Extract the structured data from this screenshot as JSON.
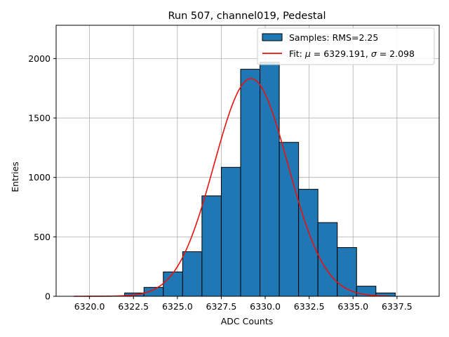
{
  "chart_data": {
    "type": "bar",
    "title": "Run 507, channel019, Pedestal",
    "xlabel": "ADC Counts",
    "ylabel": "Entries",
    "xlim": [
      6318.1,
      6339.9
    ],
    "ylim": [
      0,
      2280
    ],
    "xticks": [
      6320.0,
      6322.5,
      6325.0,
      6327.5,
      6330.0,
      6332.5,
      6335.0,
      6337.5
    ],
    "xtick_labels": [
      "6320.0",
      "6322.5",
      "6325.0",
      "6327.5",
      "6330.0",
      "6332.5",
      "6335.0",
      "6337.5"
    ],
    "yticks": [
      0,
      500,
      1000,
      1500,
      2000
    ],
    "ytick_labels": [
      "0",
      "500",
      "1000",
      "1500",
      "2000"
    ],
    "grid": true,
    "legend_position": "top-right",
    "bins": [
      {
        "start": 6322.0,
        "end": 6323.1,
        "count": 28
      },
      {
        "start": 6323.1,
        "end": 6324.2,
        "count": 75
      },
      {
        "start": 6324.2,
        "end": 6325.3,
        "count": 205
      },
      {
        "start": 6325.3,
        "end": 6326.4,
        "count": 375
      },
      {
        "start": 6326.4,
        "end": 6327.5,
        "count": 845
      },
      {
        "start": 6327.5,
        "end": 6328.6,
        "count": 1085
      },
      {
        "start": 6328.6,
        "end": 6329.7,
        "count": 1910
      },
      {
        "start": 6329.7,
        "end": 6330.8,
        "count": 1970
      },
      {
        "start": 6330.8,
        "end": 6331.9,
        "count": 1295
      },
      {
        "start": 6331.9,
        "end": 6333.0,
        "count": 900
      },
      {
        "start": 6333.0,
        "end": 6334.1,
        "count": 620
      },
      {
        "start": 6334.1,
        "end": 6335.2,
        "count": 410
      },
      {
        "start": 6335.2,
        "end": 6336.3,
        "count": 85
      },
      {
        "start": 6336.3,
        "end": 6337.4,
        "count": 28
      }
    ],
    "fit": {
      "mu": 6329.191,
      "sigma": 2.098,
      "amplitude": 1832,
      "x_range": [
        6319.1,
        6337.1
      ]
    },
    "legend": [
      {
        "label": "Samples: RMS=2.25",
        "kind": "patch"
      },
      {
        "label_prefix": "Fit: ",
        "label_mu": "μ",
        "label_mid": " = 6329.191, ",
        "label_sigma": "σ",
        "label_suffix": " = 2.098",
        "kind": "line"
      }
    ]
  },
  "colors": {
    "bar_fill": "#1f77b4",
    "bar_edge": "#000000",
    "fit_line": "#e8120c",
    "grid": "#b0b0b0"
  }
}
